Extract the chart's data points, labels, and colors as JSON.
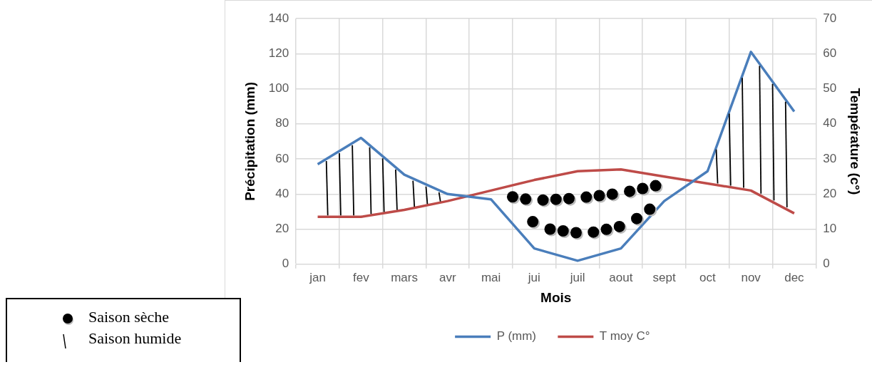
{
  "chart_data": {
    "type": "line",
    "xlabel": "Mois",
    "ylabel": "Précipitation (mm)",
    "y2label": "Température (c°)",
    "categories": [
      "jan",
      "fev",
      "mars",
      "avr",
      "mai",
      "jui",
      "juil",
      "aout",
      "sept",
      "oct",
      "nov",
      "dec"
    ],
    "series": [
      {
        "name": "P (mm)",
        "color": "#4a7ebb",
        "values": [
          57,
          72,
          51,
          40,
          37,
          9,
          2,
          9,
          36,
          53,
          121,
          87
        ]
      },
      {
        "name": "T moy C°",
        "color": "#be4b48",
        "axis": "y2",
        "values": [
          13.5,
          13.5,
          15.5,
          18,
          21,
          24,
          26.5,
          27,
          25,
          23,
          21,
          14.5
        ]
      }
    ],
    "ylim": [
      0,
      140
    ],
    "yticks": [
      0,
      20,
      40,
      60,
      80,
      100,
      120,
      140
    ],
    "y2lim": [
      0,
      70
    ],
    "y2ticks": [
      0,
      10,
      20,
      30,
      40,
      50,
      60,
      70
    ],
    "grid": true,
    "legend": "bottom",
    "marker": "none",
    "line_style": "solid",
    "annotations": [
      "Saison sèche",
      "Saison humide"
    ]
  }
}
